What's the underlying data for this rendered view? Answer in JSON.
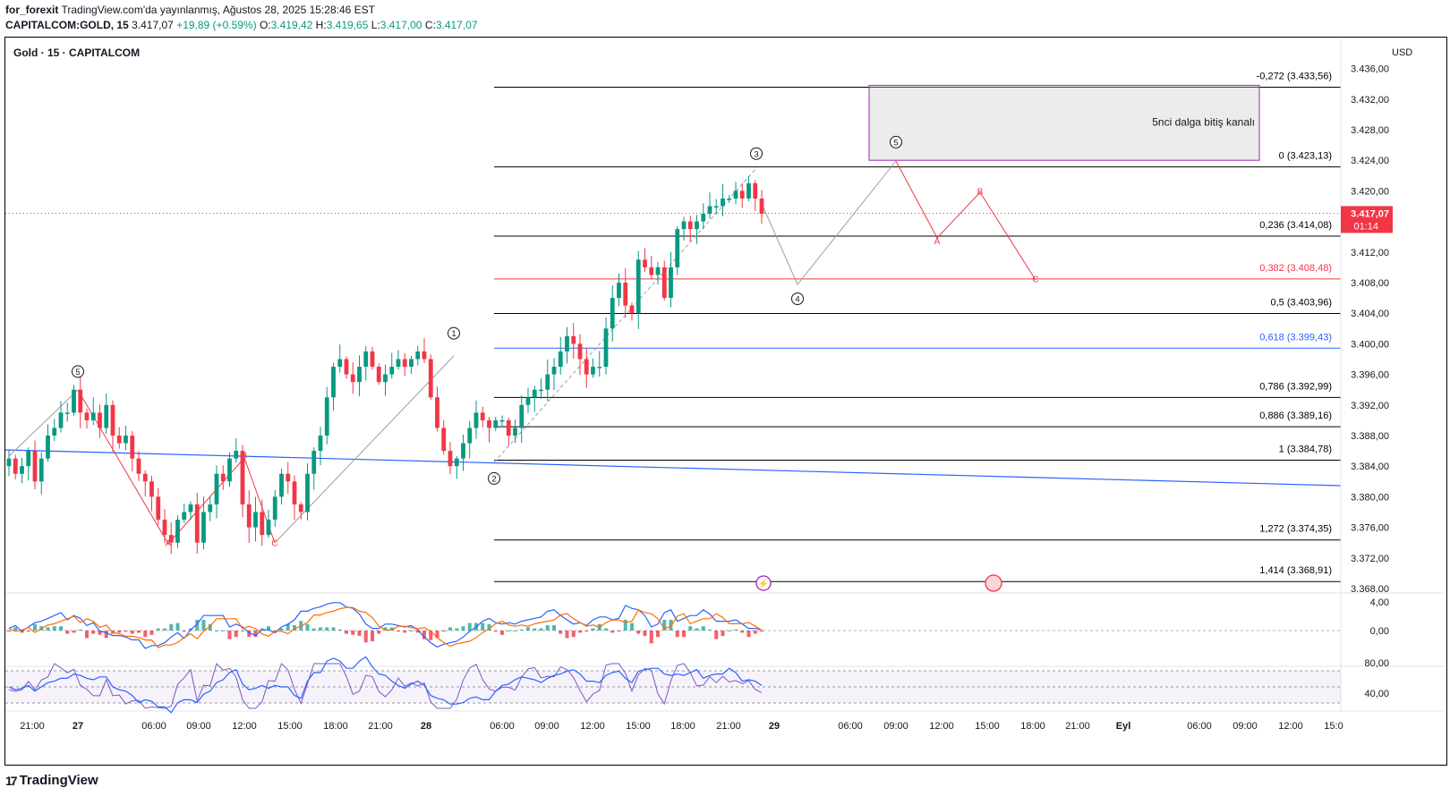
{
  "header": {
    "author": "for_forexit",
    "published": "TradingView.com'da yayınlanmış, Ağustos 28, 2025 15:28:46 EST",
    "symbol": "CAPITALCOM:GOLD, 15",
    "last": "3.417,07",
    "change": "+19,89 (+0.59%)",
    "open_label": "O:",
    "open": "3.419,42",
    "high_label": "H:",
    "high": "3.419,65",
    "low_label": "L:",
    "low": "3.417,00",
    "close_label": "C:",
    "close": "3.417,07"
  },
  "chart_title": "Gold · 15 · CAPITALCOM",
  "currency": "USD",
  "brand": "TradingView",
  "colors": {
    "up": "#089981",
    "down": "#f23645",
    "fib": "#000000",
    "fib382": "#f23645",
    "fib618": "#2962ff",
    "trend": "#2962ff",
    "box": "#9c27b0"
  },
  "chart_data": {
    "type": "candlestick",
    "ylim": [
      3366,
      3440
    ],
    "x_ticks": [
      "21:00",
      "27",
      "06:00",
      "09:00",
      "12:00",
      "15:00",
      "18:00",
      "21:00",
      "28",
      "06:00",
      "09:00",
      "12:00",
      "15:00",
      "18:00",
      "21:00",
      "29",
      "06:00",
      "09:00",
      "12:00",
      "15:00",
      "18:00",
      "21:00",
      "Eyl",
      "06:00",
      "09:00",
      "12:00",
      "15:0"
    ],
    "y_ticks": [
      "3.436,00",
      "3.432,00",
      "3.428,00",
      "3.424,00",
      "3.420,00",
      "3.416,00",
      "3.412,00",
      "3.408,00",
      "3.404,00",
      "3.400,00",
      "3.396,00",
      "3.392,00",
      "3.388,00",
      "3.384,00",
      "3.380,00",
      "3.376,00",
      "3.372,00",
      "3.368,00"
    ],
    "y_tick_values": [
      3436,
      3432,
      3428,
      3424,
      3420,
      3416,
      3412,
      3408,
      3404,
      3400,
      3396,
      3392,
      3388,
      3384,
      3380,
      3376,
      3372,
      3368
    ],
    "current_price": {
      "value": 3417.07,
      "label": "3.417,07",
      "countdown": "01:14"
    },
    "close_path": [
      3385,
      3383,
      3384,
      3386,
      3382,
      3385,
      3388,
      3389,
      3391,
      3391,
      3394,
      3391,
      3390,
      3391,
      3389,
      3392,
      3388,
      3387,
      3388,
      3385,
      3383,
      3382,
      3380,
      3377,
      3375,
      3374,
      3377,
      3378,
      3379,
      3374,
      3378,
      3379,
      3383,
      3382,
      3385,
      3386,
      3379,
      3376,
      3378,
      3375,
      3377,
      3380,
      3383,
      3382,
      3379,
      3378,
      3383,
      3386,
      3388,
      3393,
      3397,
      3398,
      3396,
      3395,
      3397,
      3399,
      3397,
      3395,
      3396,
      3397,
      3398,
      3397,
      3398,
      3399,
      3398,
      3393,
      3389,
      3386,
      3384,
      3385,
      3387,
      3389,
      3391,
      3390,
      3389,
      3390,
      3390,
      3388,
      3389,
      3392,
      3393,
      3394,
      3394,
      3396,
      3397,
      3399,
      3401,
      3400,
      3398,
      3396,
      3397,
      3397,
      3402,
      3406,
      3408,
      3405,
      3404,
      3411,
      3410,
      3409,
      3410,
      3406,
      3410,
      3415,
      3416,
      3415,
      3416,
      3417,
      3418,
      3418,
      3419,
      3419,
      3420,
      3419,
      3421,
      3419,
      3417
    ],
    "volume_profile_note": "",
    "fib_levels": [
      {
        "label": "-0,272 (3.433,56)",
        "value": 3433.56,
        "color": "#000000"
      },
      {
        "label": "0 (3.423,13)",
        "value": 3423.13,
        "color": "#000000"
      },
      {
        "label": "0,236 (3.414,08)",
        "value": 3414.08,
        "color": "#000000"
      },
      {
        "label": "0,382 (3.408,48)",
        "value": 3408.48,
        "color": "#f23645"
      },
      {
        "label": "0,5 (3.403,96)",
        "value": 3403.96,
        "color": "#000000"
      },
      {
        "label": "0,618 (3.399,43)",
        "value": 3399.43,
        "color": "#2962ff"
      },
      {
        "label": "0,786 (3.392,99)",
        "value": 3392.99,
        "color": "#000000"
      },
      {
        "label": "0,886 (3.389,16)",
        "value": 3389.16,
        "color": "#000000"
      },
      {
        "label": "1 (3.384,78)",
        "value": 3384.78,
        "color": "#000000"
      },
      {
        "label": "1,272 (3.374,35)",
        "value": 3374.35,
        "color": "#000000"
      },
      {
        "label": "1,414 (3.368,91)",
        "value": 3368.91,
        "color": "#000000"
      }
    ],
    "wave_labels": [
      {
        "text": "5",
        "x": 87,
        "price": 3394.5
      },
      {
        "text": "1",
        "x": 507,
        "price": 3399.5
      },
      {
        "text": "2",
        "x": 552,
        "price": 3384.5
      },
      {
        "text": "3",
        "x": 845,
        "price": 3423.0
      },
      {
        "text": "4",
        "x": 891,
        "price": 3408.0
      },
      {
        "text": "5",
        "x": 1001,
        "price": 3424.5
      }
    ],
    "abc_labels": [
      {
        "text": "A",
        "x": 188,
        "price": 3374
      },
      {
        "text": "B",
        "x": 273,
        "price": 3385.5
      },
      {
        "text": "C",
        "x": 307,
        "price": 3374
      },
      {
        "text": "A",
        "x": 1047,
        "price": 3413.5
      },
      {
        "text": "B",
        "x": 1095,
        "price": 3420.0
      },
      {
        "text": "C",
        "x": 1157,
        "price": 3408.5
      }
    ],
    "annotation_box": {
      "text": "5nci dalga bitiş kanalı",
      "price_top": 3433.8,
      "price_bottom": 3424.0
    },
    "macd": {
      "y_ticks": [
        "4,00",
        "0,00"
      ],
      "y_tick_values": [
        4,
        0
      ]
    },
    "rsi": {
      "y_ticks": [
        "80,00",
        "40,00"
      ],
      "y_tick_values": [
        80,
        40
      ]
    }
  }
}
